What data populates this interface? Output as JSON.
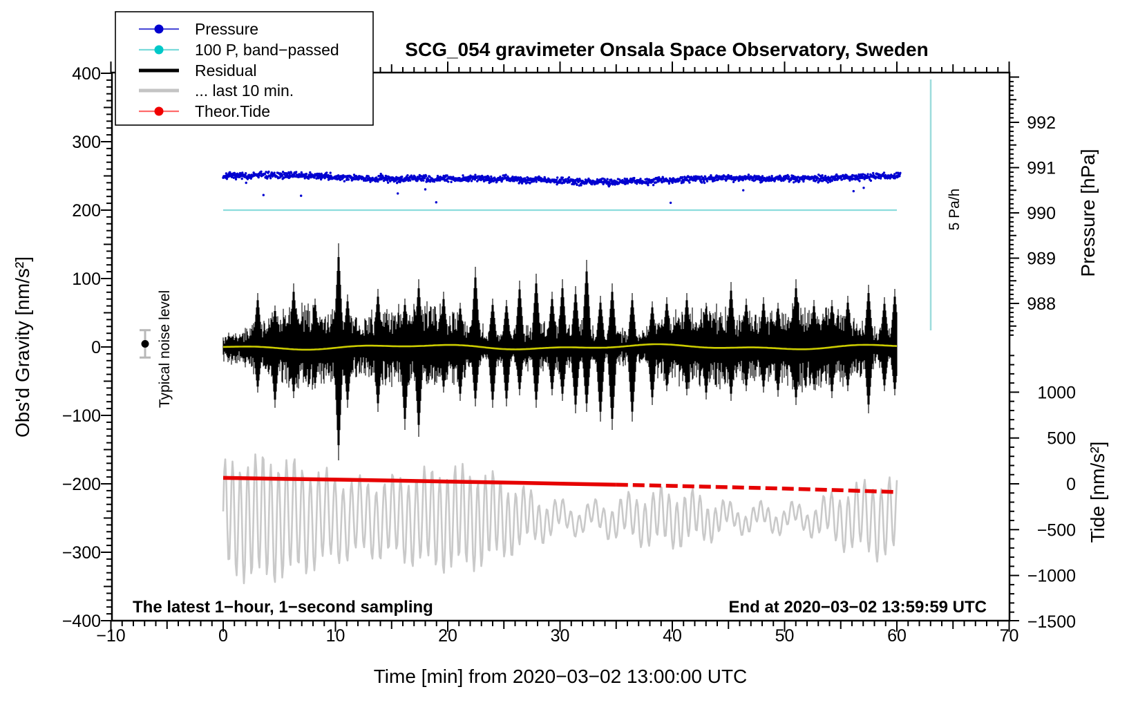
{
  "title": "SCG_054 gravimeter Onsala Space Observatory, Sweden",
  "chart_data": {
    "type": "line",
    "title": "SCG_054 gravimeter Onsala Space Observatory, Sweden",
    "xlabel": "Time [min] from 2020−03−02 13:00:00 UTC",
    "ylabel_left": "Obs'd Gravity [nm/s²]",
    "ylabel_right_top": "Pressure [hPa]",
    "ylabel_right_bottom": "Tide [nm/s²]",
    "x_range": [
      -10,
      70
    ],
    "x_major_ticks": [
      -10,
      0,
      10,
      20,
      30,
      40,
      50,
      60,
      70
    ],
    "gravity_range": [
      -400,
      400
    ],
    "gravity_major_ticks": [
      400,
      300,
      200,
      100,
      0,
      -100,
      -200,
      -300,
      -400
    ],
    "pressure_major_ticks": [
      992,
      991,
      990,
      989,
      988
    ],
    "tide_major_ticks": [
      1000,
      500,
      0,
      -500,
      -1000,
      -1500
    ],
    "grid": false,
    "legend_position": "top-left",
    "annotations": {
      "noise_label": "Typical noise level",
      "rate_label": "5 Pa/h",
      "sampling_note": "The latest 1−hour, 1−second sampling",
      "end_note": "End at 2020−03−02 13:59:59 UTC"
    },
    "legend": [
      {
        "label": "Pressure",
        "line_color": "#5050d8",
        "dot_color": "#0000d0",
        "thick": false,
        "dot": true
      },
      {
        "label": "100 P, band−passed",
        "line_color": "#7adada",
        "dot_color": "#00c8c8",
        "thick": false,
        "dot": true
      },
      {
        "label": "Residual",
        "line_color": "#000000",
        "dot_color": "#000000",
        "thick": true,
        "dot": false
      },
      {
        "label": "... last 10 min.",
        "line_color": "#c4c4c4",
        "dot_color": "#c4c4c4",
        "thick": true,
        "dot": false
      },
      {
        "label": "Theor.Tide",
        "line_color": "#ff6a6a",
        "dot_color": "#f00000",
        "thick": false,
        "dot": true
      }
    ],
    "series": [
      {
        "name": "Pressure",
        "type": "scatter",
        "color": "#0000d0",
        "x_min": 0,
        "x_max": 60.3,
        "mean_hPa": 990.76,
        "slow_variation_hPa": 0.05,
        "noise_sd_hPa": 0.035,
        "n_points": 1800,
        "outlier_rate": 0.004,
        "outlier_dip_hPa": 0.35
      },
      {
        "name": "100 P, band−passed",
        "type": "line",
        "color": "#8adcdc",
        "gravity_level": 200,
        "x_min": 0,
        "x_max": 60
      },
      {
        "name": "Residual",
        "type": "noise-envelope",
        "color": "#000000",
        "center_gravity": 0,
        "typical_amplitude_nms2": 55,
        "peak_amplitude_nms2": 164,
        "x_min": 0,
        "x_max": 60,
        "spikes_t_up_dn": [
          [
            3.1,
            78,
            66
          ],
          [
            4.6,
            60,
            88
          ],
          [
            6.3,
            92,
            74
          ],
          [
            8.2,
            70,
            60
          ],
          [
            10.25,
            150,
            164
          ],
          [
            11.1,
            76,
            88
          ],
          [
            13.8,
            84,
            94
          ],
          [
            16.2,
            70,
            120
          ],
          [
            17.4,
            98,
            130
          ],
          [
            19.6,
            80,
            66
          ],
          [
            21.1,
            64,
            78
          ],
          [
            22.45,
            116,
            86
          ],
          [
            24.0,
            70,
            88
          ],
          [
            25.2,
            68,
            86
          ],
          [
            26.4,
            96,
            70
          ],
          [
            27.9,
            106,
            88
          ],
          [
            29.3,
            80,
            70
          ],
          [
            30.2,
            98,
            78
          ],
          [
            31.4,
            88,
            96
          ],
          [
            32.35,
            126,
            94
          ],
          [
            33.6,
            74,
            108
          ],
          [
            34.65,
            92,
            120
          ],
          [
            36.4,
            78,
            108
          ],
          [
            38.2,
            66,
            84
          ],
          [
            39.5,
            72,
            64
          ],
          [
            41.3,
            78,
            70
          ],
          [
            43.0,
            64,
            76
          ],
          [
            45.2,
            94,
            78
          ],
          [
            46.6,
            70,
            64
          ],
          [
            48.1,
            72,
            66
          ],
          [
            49.4,
            64,
            72
          ],
          [
            51.0,
            98,
            84
          ],
          [
            52.6,
            68,
            62
          ],
          [
            54.2,
            68,
            74
          ],
          [
            55.6,
            74,
            64
          ],
          [
            57.5,
            90,
            96
          ],
          [
            58.9,
            72,
            64
          ],
          [
            59.8,
            84,
            70
          ]
        ]
      },
      {
        "name": "Residual band-passed",
        "type": "line",
        "color": "#cccc00",
        "center_gravity": 0,
        "x_min": 0,
        "x_max": 60
      },
      {
        "name": "... last 10 min.",
        "type": "oscillation",
        "color": "#c9c9c9",
        "center_gravity": -250,
        "amplitude_range_nms2": [
          15,
          88
        ],
        "period_s": 42,
        "x_min": 0,
        "x_max": 60
      },
      {
        "name": "Theor.Tide",
        "type": "line",
        "color": "#e60000",
        "dashed_after_min": 35,
        "x": [
          0,
          5,
          10,
          15,
          20,
          25,
          30,
          35,
          40,
          45,
          50,
          55,
          60
        ],
        "tide_values": [
          65,
          55,
          46,
          36,
          25,
          14,
          2,
          -10,
          -23,
          -37,
          -52,
          -70,
          -90
        ]
      }
    ],
    "noise_marker": {
      "gravity": 0,
      "error_bar_nms2": 20
    },
    "pressure_scale_bar": {
      "label": "5 Pa/h",
      "color": "#9ddcdc"
    }
  }
}
